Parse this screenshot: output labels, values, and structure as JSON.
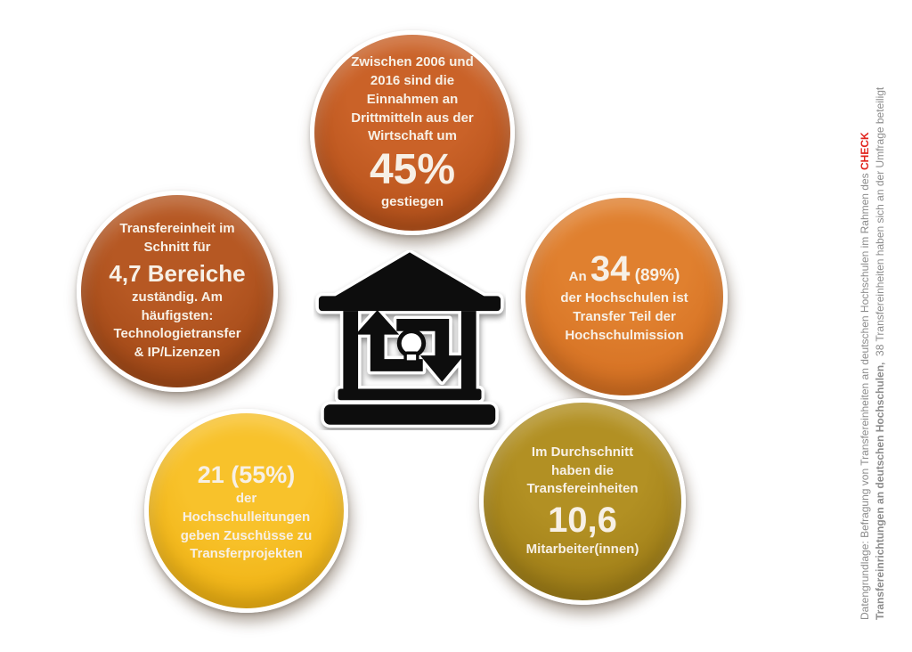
{
  "page": {
    "background": "#FFFFFF"
  },
  "bubbles": {
    "top": {
      "topic": "Drittmittel aus der Wirtschaft",
      "color_light": "#CA6228",
      "color_dark": "#AB4914",
      "lines": [
        [
          {
            "t": "Zwischen 2006 und",
            "s": "md"
          }
        ],
        [
          {
            "t": "2016 sind die",
            "s": "md"
          }
        ],
        [
          {
            "t": "Einnahmen an",
            "s": "md"
          }
        ],
        [
          {
            "t": "Drittmitteln aus der",
            "s": "md"
          }
        ],
        [
          {
            "t": "Wirtschaft um",
            "s": "md"
          }
        ],
        [
          {
            "t": "45%",
            "s": "huge"
          }
        ],
        [
          {
            "t": "gestiegen",
            "s": "md"
          }
        ]
      ]
    },
    "left": {
      "topic": "Zuständigkeitsbereiche der Transfereinheit",
      "color_light": "#B65823",
      "color_dark": "#984111",
      "lines": [
        [
          {
            "t": "Transfereinheit im",
            "s": "md"
          }
        ],
        [
          {
            "t": "Schnitt für",
            "s": "md"
          }
        ],
        [
          {
            "t": "4,7 Bereiche",
            "s": "xl"
          }
        ],
        [
          {
            "t": "zuständig. Am",
            "s": "md"
          }
        ],
        [
          {
            "t": "häufigsten:",
            "s": "md"
          }
        ],
        [
          {
            "t": "Technologietransfer",
            "s": "md"
          }
        ],
        [
          {
            "t": "& IP/Lizenzen",
            "s": "md"
          }
        ]
      ]
    },
    "right": {
      "topic": "Transfer als Teil der Hochschulmission",
      "color_light": "#E0802F",
      "color_dark": "#CE671B",
      "lines": [
        [
          {
            "t": "An ",
            "s": "md"
          },
          {
            "t": "34",
            "s": "num"
          },
          {
            "t": " (89%)",
            "s": "lg"
          }
        ],
        [
          {
            "t": "der Hochschulen ist",
            "s": "md"
          }
        ],
        [
          {
            "t": "Transfer Teil der",
            "s": "md"
          }
        ],
        [
          {
            "t": "Hochschulmission",
            "s": "md"
          }
        ]
      ]
    },
    "bottom_left": {
      "topic": "Zuschüsse der Hochschulleitungen",
      "color_light": "#F8C22B",
      "color_dark": "#EBAA07",
      "lines": [
        [
          {
            "t": "21 (55%)",
            "s": "xxl"
          }
        ],
        [
          {
            "t": "der",
            "s": "md"
          }
        ],
        [
          {
            "t": "Hochschulleitungen",
            "s": "md"
          }
        ],
        [
          {
            "t": "geben Zuschüsse zu",
            "s": "md"
          }
        ],
        [
          {
            "t": "Transferprojekten",
            "s": "md"
          }
        ]
      ]
    },
    "bottom_right": {
      "topic": "Mitarbeiterzahl der Transfereinheiten",
      "color_light": "#B29023",
      "color_dark": "#957411",
      "lines": [
        [
          {
            "t": "Im Durchschnitt",
            "s": "md"
          }
        ],
        [
          {
            "t": "haben die",
            "s": "md"
          }
        ],
        [
          {
            "t": "Transfereinheiten",
            "s": "md"
          }
        ],
        [
          {
            "t": "10,6",
            "s": "num"
          }
        ],
        [
          {
            "t": "Mitarbeiter(innen)",
            "s": "md"
          }
        ]
      ]
    }
  },
  "center_icon": {
    "name": "knowledge-transfer-building-icon",
    "color": "#0B0B0B"
  },
  "sidebar_note": {
    "text_color": "#8C8C8C",
    "highlight_color": "#E1241D",
    "line1_regular": "Datengrundlage: Befragung von Transfereinheiten an deutschen Hochschulen im Rahmen des ",
    "line1_highlight": "CHECK",
    "line2_bold": "Transfereinrichtungen an deutschen Hochschulen,",
    "line2_regular": "  38 Transfereinheiten haben sich an der Umfrage beteiligt"
  }
}
